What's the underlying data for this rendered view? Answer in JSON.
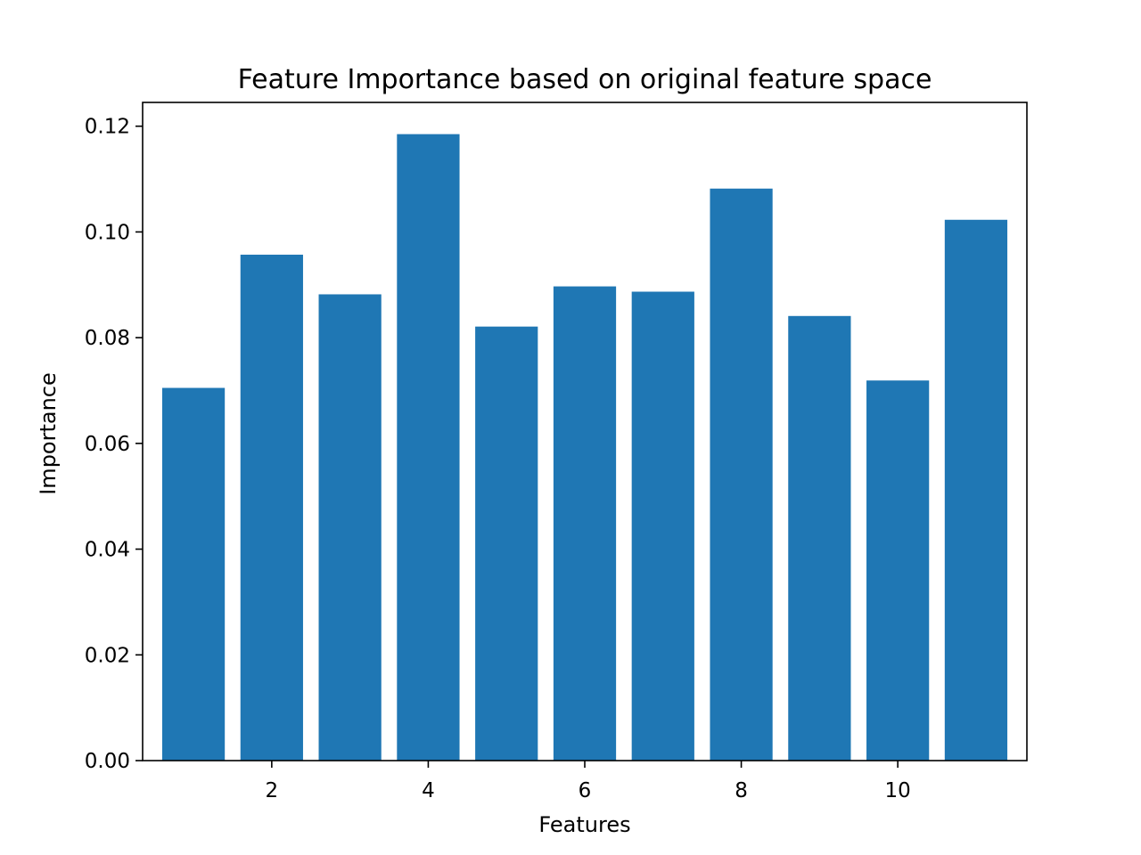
{
  "chart_data": {
    "type": "bar",
    "title": "Feature Importance based on original feature space",
    "xlabel": "Features",
    "ylabel": "Importance",
    "x": [
      1,
      2,
      3,
      4,
      5,
      6,
      7,
      8,
      9,
      10,
      11
    ],
    "values": [
      0.0705,
      0.0957,
      0.0882,
      0.1185,
      0.0821,
      0.0897,
      0.0887,
      0.1082,
      0.0841,
      0.0719,
      0.1023
    ],
    "xlim": [
      0.35,
      11.65
    ],
    "ylim": [
      0,
      0.1245
    ],
    "xticks": [
      2,
      4,
      6,
      8,
      10
    ],
    "xtick_labels": [
      "2",
      "4",
      "6",
      "8",
      "10"
    ],
    "yticks": [
      0,
      0.02,
      0.04,
      0.06,
      0.08,
      0.1,
      0.12
    ],
    "ytick_labels": [
      "0.00",
      "0.02",
      "0.04",
      "0.06",
      "0.08",
      "0.10",
      "0.12"
    ],
    "bar_width": 0.8,
    "grid": false,
    "colors": {
      "bar": "#1f77b4"
    }
  }
}
